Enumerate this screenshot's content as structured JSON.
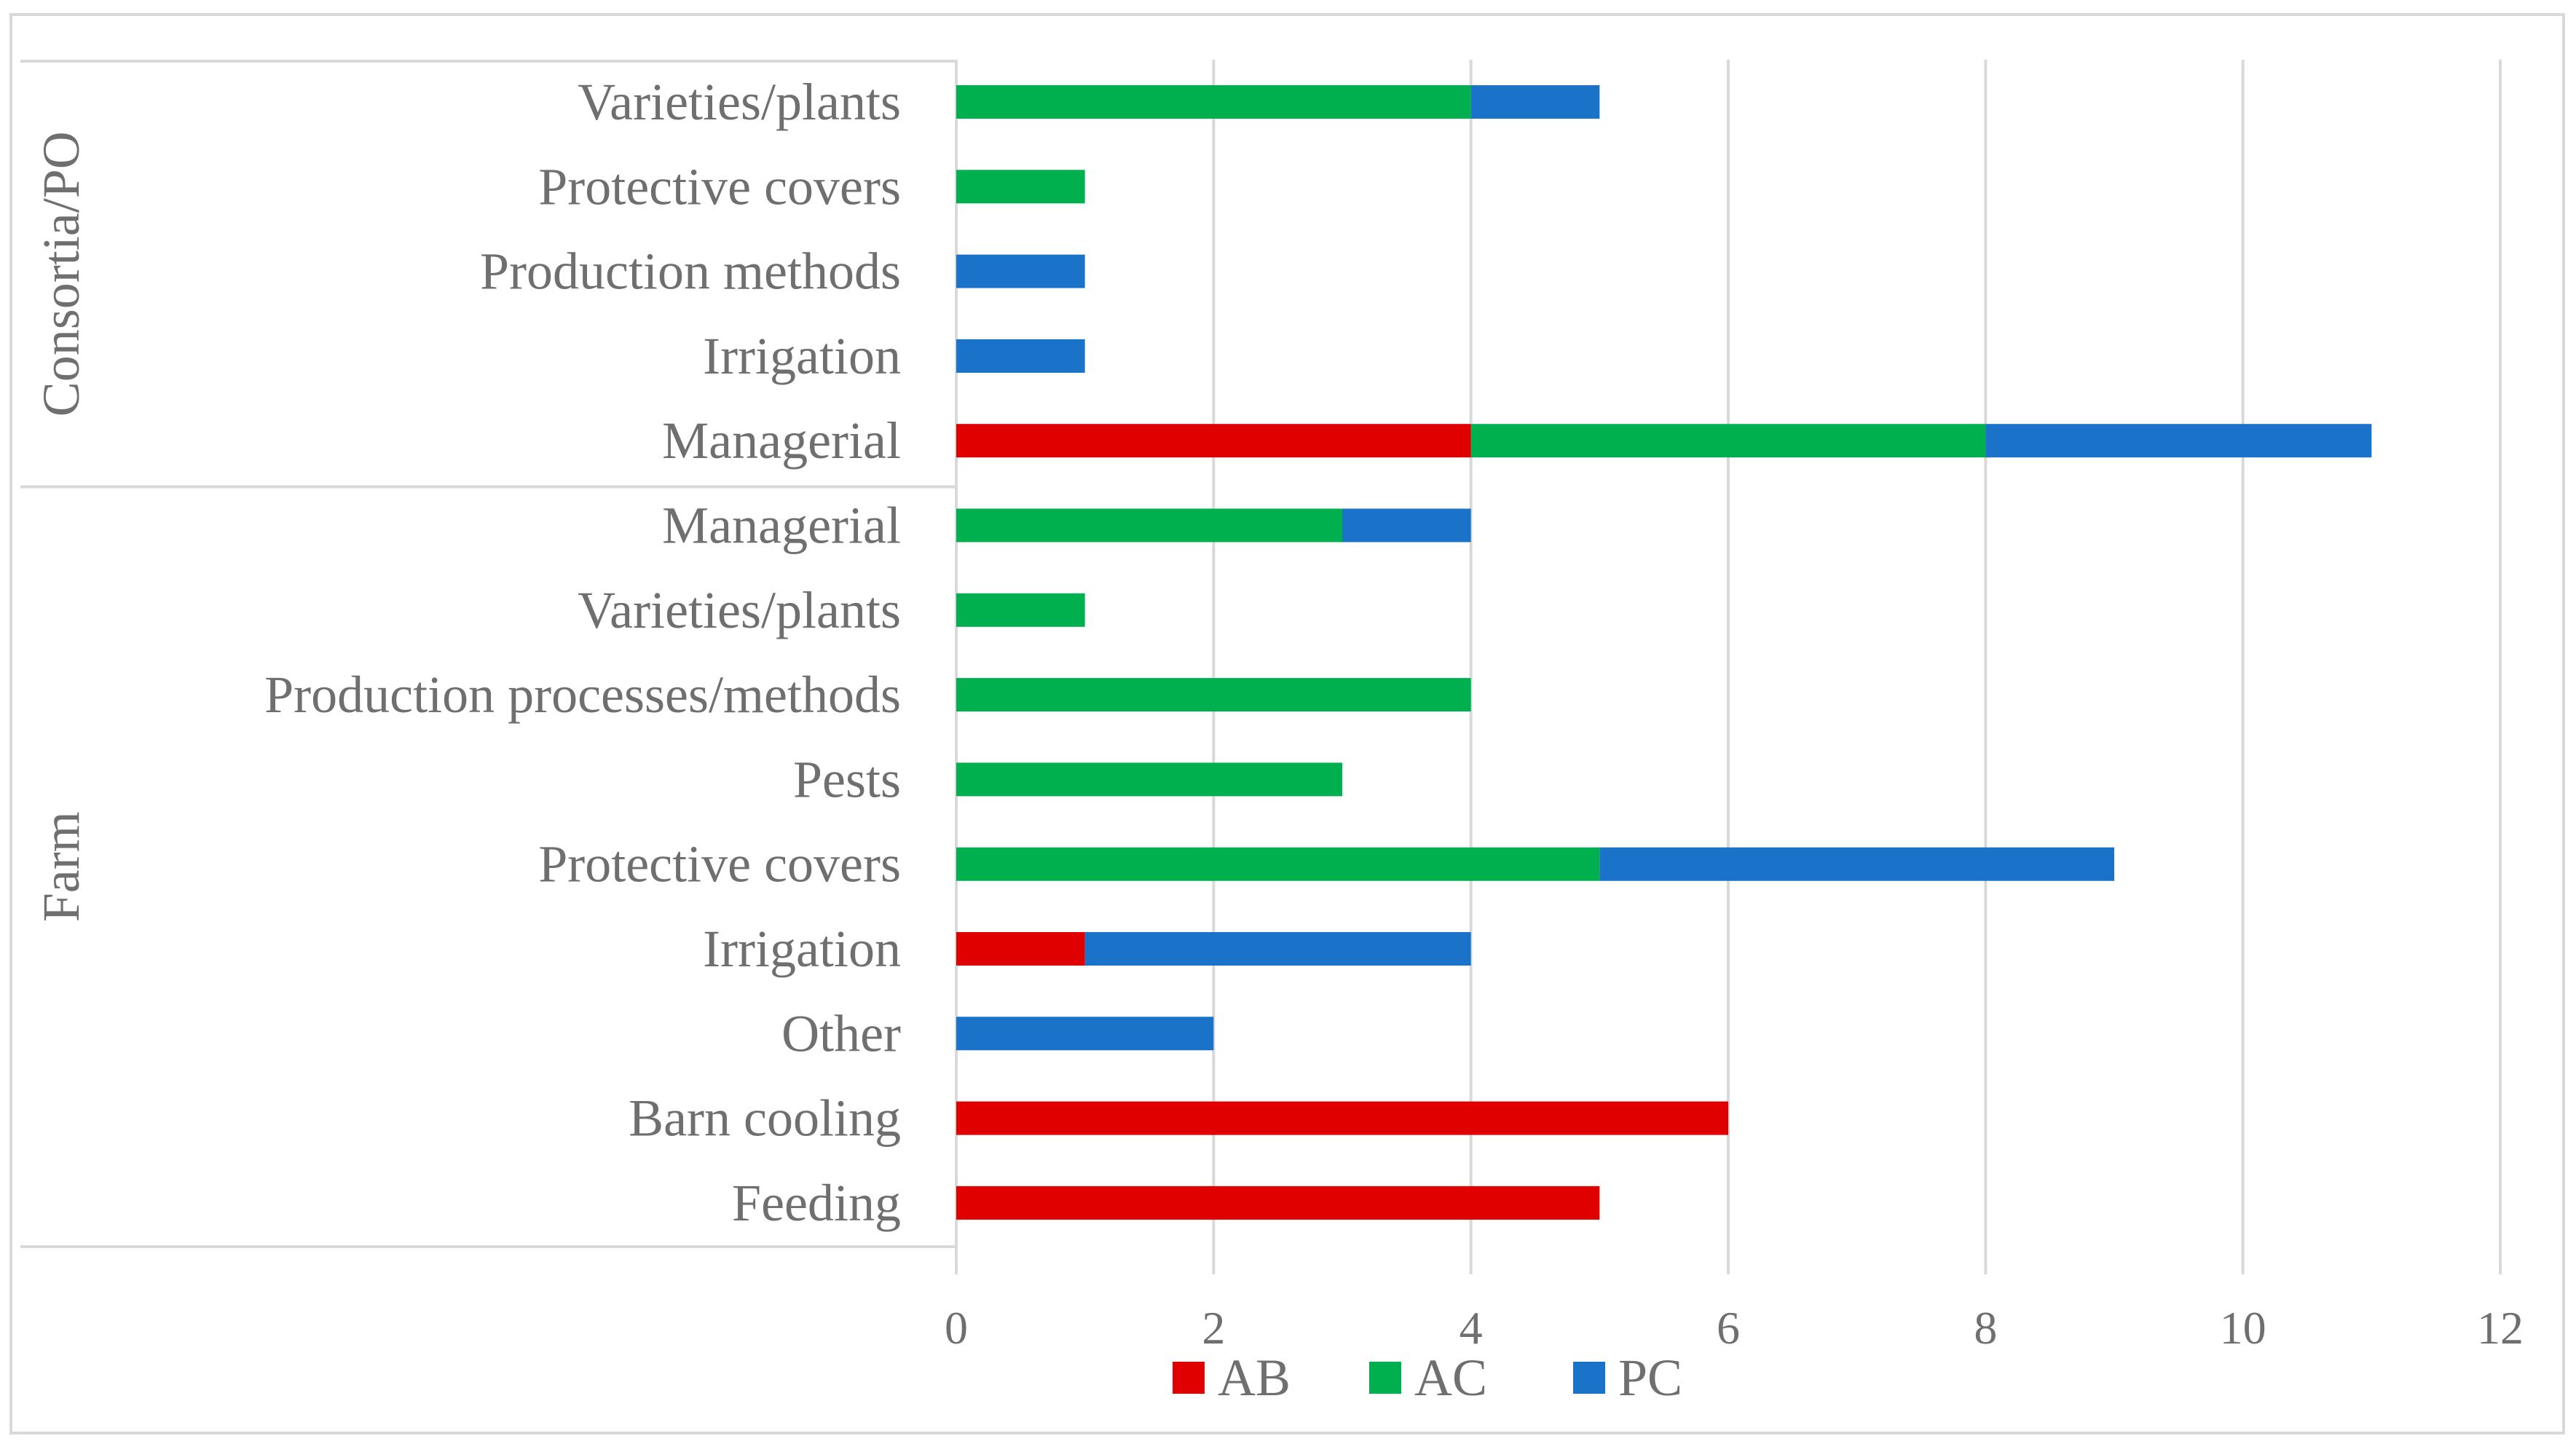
{
  "chart_data": {
    "type": "bar",
    "orientation": "horizontal",
    "stacked": true,
    "title": "",
    "xlabel": "",
    "ylabel": "",
    "xlim": [
      0,
      12
    ],
    "x_ticks": [
      0,
      2,
      4,
      6,
      8,
      10,
      12
    ],
    "grid": true,
    "legend_position": "bottom",
    "groups": [
      {
        "name": "Consortia/PO",
        "categories": [
          "Varieties/plants",
          "Protective covers",
          "Production methods",
          "Irrigation",
          "Managerial"
        ]
      },
      {
        "name": "Farm",
        "categories": [
          "Managerial",
          "Varieties/plants",
          "Production processes/methods",
          "Pests",
          "Protective covers",
          "Irrigation",
          "Other",
          "Barn cooling",
          "Feeding"
        ]
      }
    ],
    "categories": [
      "Varieties/plants",
      "Protective covers",
      "Production methods",
      "Irrigation",
      "Managerial",
      "Managerial",
      "Varieties/plants",
      "Production processes/methods",
      "Pests",
      "Protective covers",
      "Irrigation",
      "Other",
      "Barn cooling",
      "Feeding"
    ],
    "series": [
      {
        "name": "AB",
        "color": "#e00000",
        "values": [
          0,
          0,
          0,
          0,
          4,
          0,
          0,
          0,
          0,
          0,
          1,
          0,
          6,
          5
        ]
      },
      {
        "name": "AC",
        "color": "#00b04f",
        "values": [
          4,
          1,
          0,
          0,
          4,
          3,
          1,
          4,
          3,
          5,
          0,
          0,
          0,
          0
        ]
      },
      {
        "name": "PC",
        "color": "#1a73c8",
        "values": [
          1,
          0,
          1,
          1,
          3,
          1,
          0,
          0,
          0,
          4,
          3,
          2,
          0,
          0
        ]
      }
    ]
  }
}
